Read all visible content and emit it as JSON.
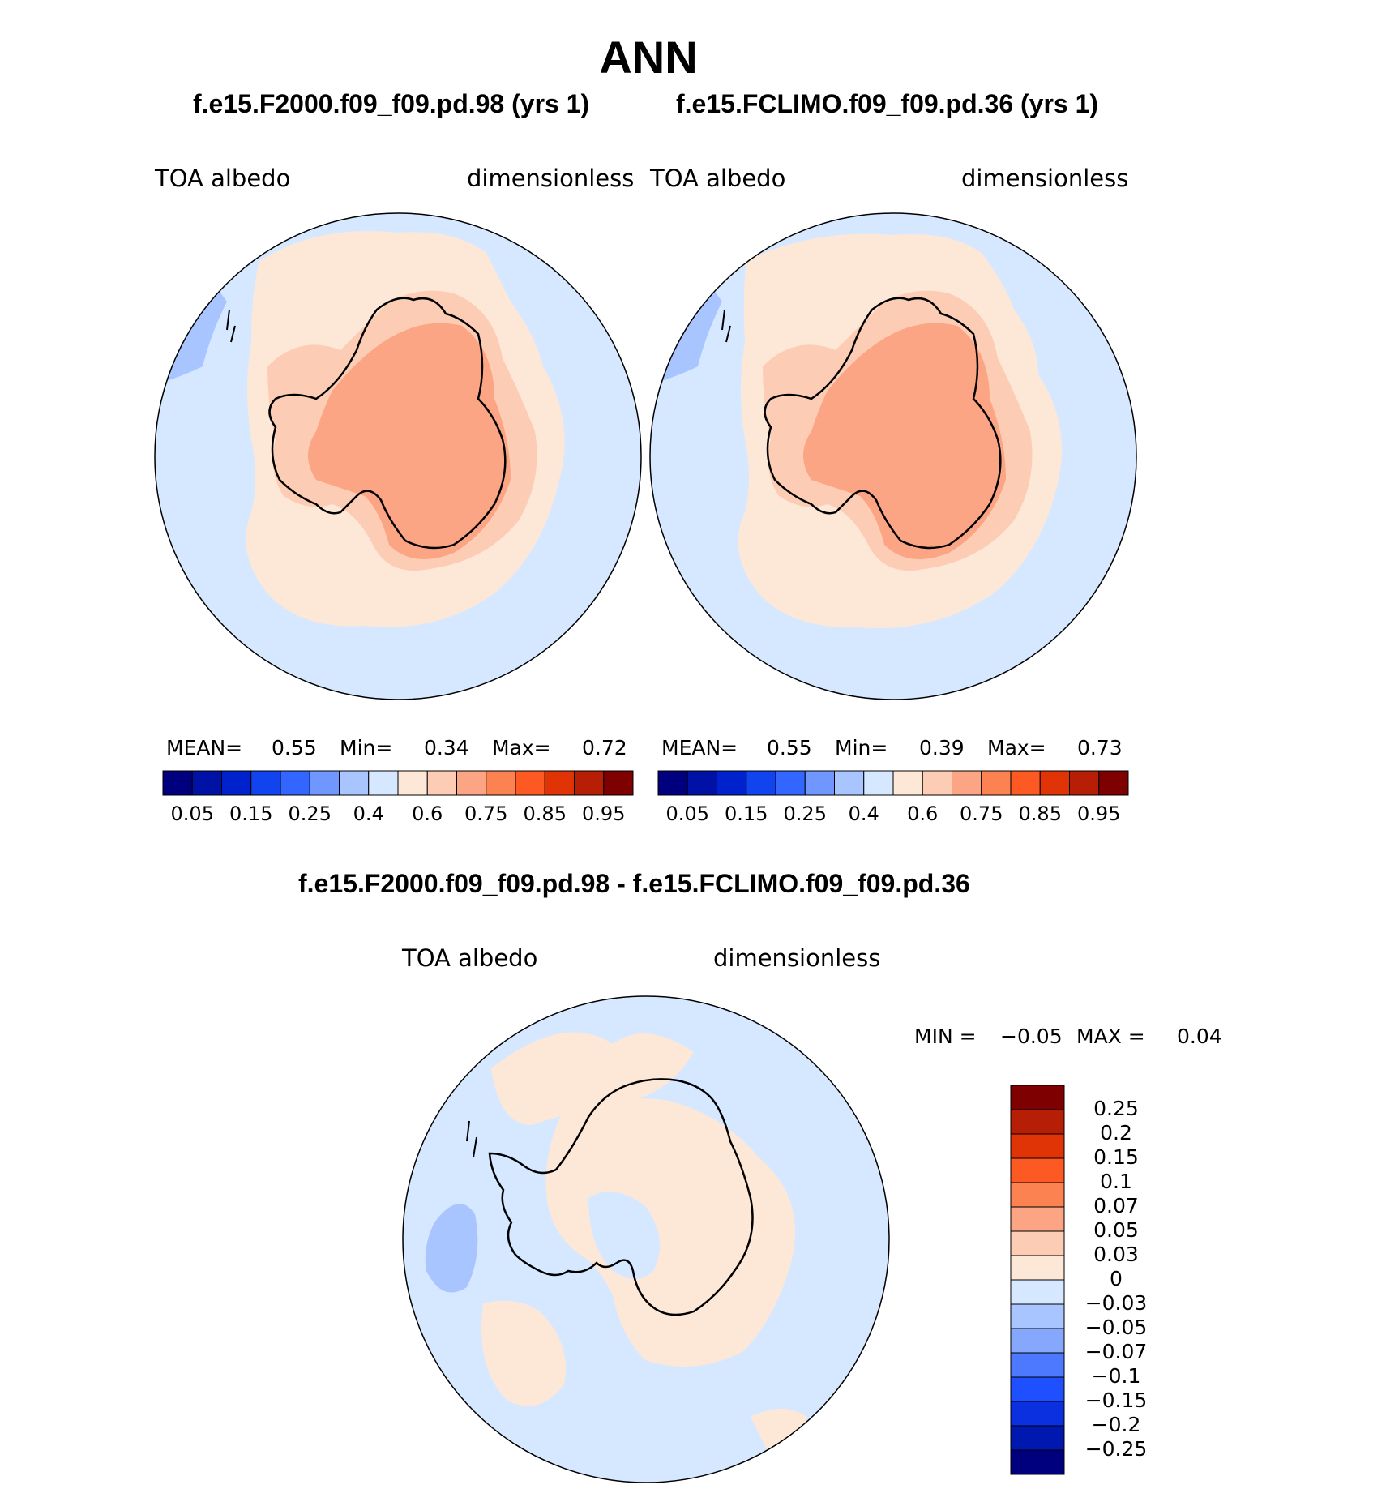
{
  "title": "ANN",
  "panels": [
    {
      "case": "f.e15.F2000.f09_f09.pd.98 (yrs 1)",
      "variable": "TOA  albedo",
      "units": "dimensionless",
      "stats": {
        "mean_label": "MEAN=",
        "mean": "0.55",
        "min_label": "Min=",
        "min": "0.34",
        "max_label": "Max=",
        "max": "0.72"
      }
    },
    {
      "case": "f.e15.FCLIMO.f09_f09.pd.36 (yrs 1)",
      "variable": "TOA  albedo",
      "units": "dimensionless",
      "stats": {
        "mean_label": "MEAN=",
        "mean": "0.55",
        "min_label": "Min=",
        "min": "0.39",
        "max_label": "Max=",
        "max": "0.73"
      }
    }
  ],
  "colorbar_horizontal": {
    "colors": [
      "#00007f",
      "#0011a6",
      "#0022cc",
      "#1144ee",
      "#3366ff",
      "#6f97ff",
      "#a9c5ff",
      "#d6e8ff",
      "#fde8d8",
      "#fcccb4",
      "#fca584",
      "#fc8251",
      "#fc5a22",
      "#e03407",
      "#b61f06",
      "#7f0000"
    ],
    "tick_labels": [
      "0.05",
      "0.15",
      "0.25",
      "0.4",
      "0.6",
      "0.75",
      "0.85",
      "0.95"
    ]
  },
  "difference": {
    "title": "f.e15.F2000.f09_f09.pd.98 - f.e15.FCLIMO.f09_f09.pd.36",
    "variable": "TOA  albedo",
    "units": "dimensionless",
    "min_label": "MIN =",
    "min": "−0.05",
    "max_label": "MAX =",
    "max": "0.04",
    "colorbar": {
      "colors": [
        "#7f0000",
        "#b61f06",
        "#e03407",
        "#fc5a22",
        "#fc8251",
        "#fca584",
        "#fcccb4",
        "#fde8d8",
        "#d6e8ff",
        "#a9c5ff",
        "#86a8fc",
        "#4d79ff",
        "#1f50ff",
        "#0a30e0",
        "#0018b0",
        "#00007f"
      ],
      "tick_labels": [
        "0.25",
        "0.2",
        "0.15",
        "0.1",
        "0.07",
        "0.05",
        "0.03",
        "0",
        "−0.03",
        "−0.05",
        "−0.07",
        "−0.1",
        "−0.15",
        "−0.2",
        "−0.25"
      ]
    }
  },
  "map_colors": {
    "ocean": "#d6e8ff",
    "low_albedo": "#a9c5ff",
    "sea_ice": "#fde8d8",
    "mid": "#fcccb4",
    "high": "#fca584",
    "coast": "#000000",
    "diff_neg": "#d6e8ff",
    "diff_pos": "#fde8d8",
    "diff_strong_neg": "#a9c5ff",
    "diff_strong_pos": "#fcccb4"
  }
}
